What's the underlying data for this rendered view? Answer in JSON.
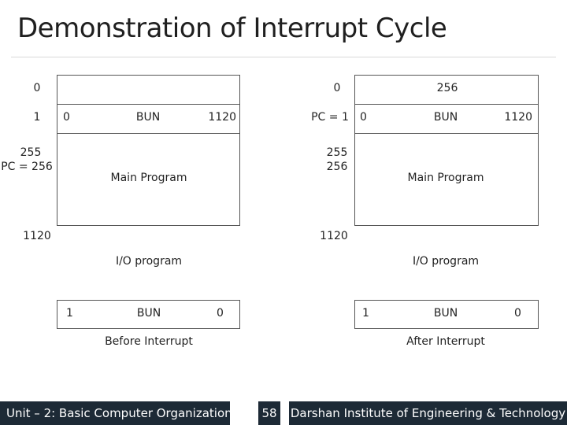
{
  "slide": {
    "title": "Demonstration of Interrupt Cycle"
  },
  "before": {
    "addr_0": "0",
    "addr_1": "1",
    "addr_255": "255",
    "addr_pc": "PC = 256",
    "addr_1120": "1120",
    "mem0": "",
    "mem1_left": "0",
    "mem1_mid": "BUN",
    "mem1_right": "1120",
    "main_program": "Main Program",
    "io_program": "I/O program",
    "last_left": "1",
    "last_mid": "BUN",
    "last_right": "0",
    "caption": "Before Interrupt"
  },
  "after": {
    "addr_0": "0",
    "addr_pc": "PC = 1",
    "addr_255": "255",
    "addr_256": "256",
    "addr_1120": "1120",
    "mem0": "256",
    "mem1_left": "0",
    "mem1_mid": "BUN",
    "mem1_right": "1120",
    "main_program": "Main Program",
    "io_program": "I/O program",
    "last_left": "1",
    "last_mid": "BUN",
    "last_right": "0",
    "caption": "After Interrupt"
  },
  "footer": {
    "unit": "Unit – 2: Basic Computer Organization",
    "page": "58",
    "institute": "Darshan Institute of Engineering & Technology"
  }
}
